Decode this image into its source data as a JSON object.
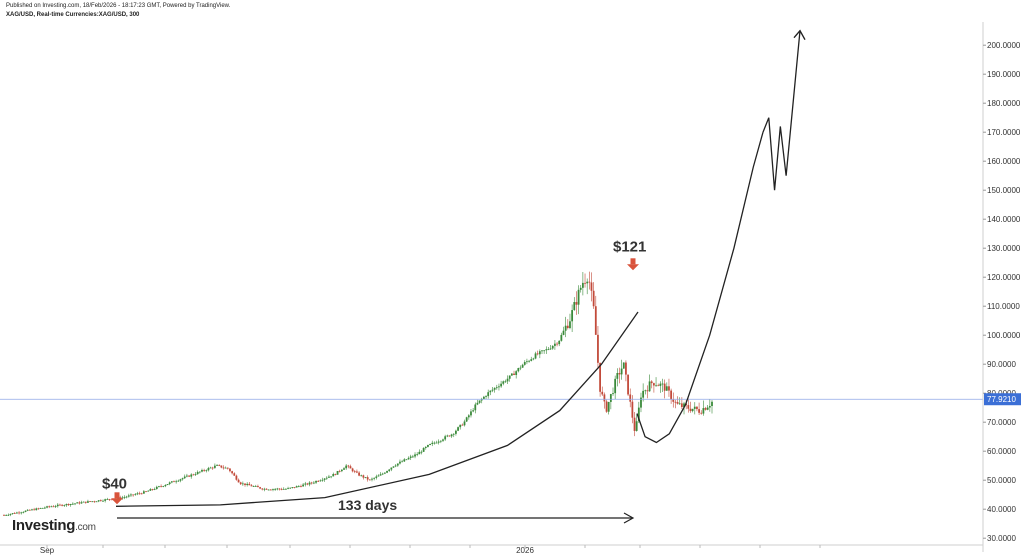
{
  "header": {
    "published": "Published on Investing.com, 18/Feb/2026 - 18:17:23 GMT, Powered by TradingView.",
    "symbol": "XAG/USD, Real-time Currencies:XAG/USD, 300"
  },
  "logo": {
    "brand": "Investing",
    "domain": ".com"
  },
  "chart_data": {
    "type": "line",
    "title": "",
    "xlabel": "",
    "ylabel": "",
    "x_tick_labels": [
      "Sep",
      "2026"
    ],
    "y_tick_labels": [
      "30.0000",
      "40.0000",
      "50.0000",
      "60.0000",
      "70.0000",
      "80.0000",
      "90.0000",
      "100.0000",
      "110.0000",
      "120.0000",
      "130.0000",
      "140.0000",
      "150.0000",
      "160.0000",
      "170.0000",
      "180.0000",
      "190.0000",
      "200.0000"
    ],
    "ylim": [
      28,
      208
    ],
    "current_price": 77.921,
    "current_price_label": "77.9210",
    "price_path": [
      [
        0,
        38
      ],
      [
        0.04,
        39.5
      ],
      [
        0.08,
        41
      ],
      [
        0.12,
        42
      ],
      [
        0.16,
        43
      ],
      [
        0.2,
        44
      ],
      [
        0.24,
        46
      ],
      [
        0.28,
        49
      ],
      [
        0.32,
        52
      ],
      [
        0.36,
        55
      ],
      [
        0.38,
        54
      ],
      [
        0.4,
        49
      ],
      [
        0.44,
        47
      ],
      [
        0.48,
        47
      ],
      [
        0.52,
        49
      ],
      [
        0.56,
        52
      ],
      [
        0.58,
        55
      ],
      [
        0.6,
        52
      ],
      [
        0.62,
        50
      ],
      [
        0.64,
        52
      ],
      [
        0.66,
        55
      ],
      [
        0.68,
        57
      ],
      [
        0.7,
        59
      ],
      [
        0.72,
        62
      ],
      [
        0.74,
        64
      ],
      [
        0.76,
        66
      ],
      [
        0.78,
        70
      ],
      [
        0.8,
        76
      ],
      [
        0.82,
        80
      ],
      [
        0.84,
        83
      ],
      [
        0.86,
        86
      ],
      [
        0.88,
        90
      ],
      [
        0.9,
        93
      ],
      [
        0.92,
        95
      ],
      [
        0.94,
        98
      ],
      [
        0.96,
        106
      ],
      [
        0.97,
        112
      ],
      [
        0.98,
        118
      ],
      [
        0.99,
        121
      ],
      [
        1.0,
        108
      ],
      [
        1.01,
        82
      ],
      [
        1.02,
        74
      ],
      [
        1.04,
        86
      ],
      [
        1.05,
        90
      ],
      [
        1.06,
        78
      ],
      [
        1.07,
        66
      ],
      [
        1.08,
        80
      ],
      [
        1.1,
        84
      ],
      [
        1.12,
        82
      ],
      [
        1.14,
        76
      ],
      [
        1.16,
        75
      ],
      [
        1.18,
        74
      ],
      [
        1.2,
        77
      ]
    ],
    "projection": {
      "bowl": [
        [
          0,
          73
        ],
        [
          0.05,
          65
        ],
        [
          0.12,
          63
        ],
        [
          0.2,
          66
        ],
        [
          0.3,
          76
        ],
        [
          0.45,
          100
        ],
        [
          0.6,
          130
        ],
        [
          0.72,
          158
        ],
        [
          0.78,
          170
        ]
      ],
      "zigzag": [
        [
          0.78,
          170
        ],
        [
          0.83,
          175
        ],
        [
          0.88,
          150
        ],
        [
          0.93,
          172
        ],
        [
          0.98,
          155
        ],
        [
          1.1,
          205
        ]
      ]
    },
    "support_curve": [
      [
        0,
        41
      ],
      [
        0.2,
        41.5
      ],
      [
        0.4,
        44
      ],
      [
        0.6,
        52
      ],
      [
        0.75,
        62
      ],
      [
        0.85,
        74
      ],
      [
        0.93,
        90
      ],
      [
        1.0,
        108
      ]
    ],
    "annotations": [
      {
        "text": "$40",
        "value": 41
      },
      {
        "text": "$121",
        "value": 121
      },
      {
        "text": "133 days",
        "kind": "duration-arrow"
      }
    ],
    "arrow_color": "#d9533b",
    "grid": false
  }
}
